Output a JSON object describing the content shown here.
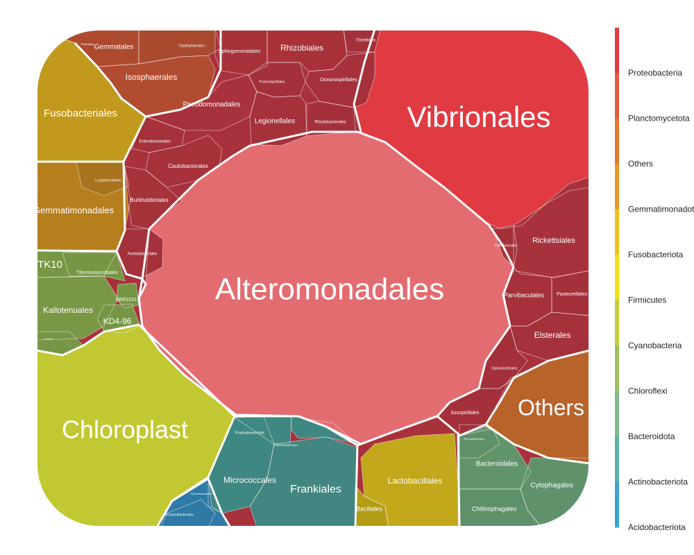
{
  "chart_data": {
    "type": "treemap",
    "layout": "voronoi",
    "legend_position": "right",
    "phyla": [
      {
        "name": "Proteobacteria",
        "color": "#e2393f"
      },
      {
        "name": "Planctomycetota",
        "color": "#e35b3c"
      },
      {
        "name": "Others",
        "color": "#e6772d"
      },
      {
        "name": "Gemmatimonadota",
        "color": "#e99623"
      },
      {
        "name": "Fusobacteriota",
        "color": "#ecc01c"
      },
      {
        "name": "Firmicutes",
        "color": "#f0e014"
      },
      {
        "name": "Cyanobacteria",
        "color": "#c2cc3c"
      },
      {
        "name": "Chloroflexi",
        "color": "#9ebf64"
      },
      {
        "name": "Bacteroidota",
        "color": "#7fba8c"
      },
      {
        "name": "Actinobacteriota",
        "color": "#5db2a8"
      },
      {
        "name": "Acidobacteriota",
        "color": "#3aa3d6"
      }
    ],
    "legend": [
      {
        "label": "Proteobacteria"
      },
      {
        "label": "Planctomycetota"
      },
      {
        "label": "Others"
      },
      {
        "label": "Gemmatimonadota"
      },
      {
        "label": "Fusobacteriota"
      },
      {
        "label": "Firmicutes"
      },
      {
        "label": "Cyanobacteria"
      },
      {
        "label": "Chloroflexi"
      },
      {
        "label": "Bacteroidota"
      },
      {
        "label": "Actinobacteriota"
      },
      {
        "label": "Acidobacteriota"
      }
    ],
    "orders": [
      {
        "name": "Alteromonadales",
        "phylum": "Proteobacteria",
        "color": "#e36c70"
      },
      {
        "name": "Vibrionales",
        "phylum": "Proteobacteria",
        "color": "#e03b42"
      },
      {
        "name": "Chloroplast",
        "phylum": "Cyanobacteria",
        "color": "#c2c832"
      },
      {
        "name": "Others",
        "phylum": "Others",
        "color": "#b8632a"
      },
      {
        "name": "Fusobacteriales",
        "phylum": "Fusobacteriota",
        "color": "#c19a1d"
      },
      {
        "name": "Gemmatimonadales",
        "phylum": "Gemmatimonadota",
        "color": "#b67f1e"
      },
      {
        "name": "Isosphaerales",
        "phylum": "Planctomycetota",
        "color": "#b24c30"
      },
      {
        "name": "Gemmatales",
        "phylum": "Planctomycetota",
        "color": "#ad4a2e"
      },
      {
        "name": "Lactobacillales",
        "phylum": "Firmicutes",
        "color": "#c2a81a"
      },
      {
        "name": "Bacillales",
        "phylum": "Firmicutes",
        "color": "#b39d14"
      },
      {
        "name": "Frankiales",
        "phylum": "Actinobacteriota",
        "color": "#418681"
      },
      {
        "name": "Micrococcales",
        "phylum": "Actinobacteriota",
        "color": "#3f8782"
      },
      {
        "name": "Bacteroidales",
        "phylum": "Bacteroidota",
        "color": "#61946a"
      },
      {
        "name": "Cytophagales",
        "phylum": "Bacteroidota",
        "color": "#5f926a"
      },
      {
        "name": "Chitinophagales",
        "phylum": "Bacteroidota",
        "color": "#5e9069"
      },
      {
        "name": "Kallotenuales",
        "phylum": "Chloroflexi",
        "color": "#789845"
      },
      {
        "name": "TK10",
        "phylum": "Chloroflexi",
        "color": "#779745"
      },
      {
        "name": "KD4-96",
        "phylum": "Chloroflexi",
        "color": "#769645"
      },
      {
        "name": "Rhizobiales",
        "phylum": "Proteobacteria",
        "color": "#a9323a"
      },
      {
        "name": "Pseudomonadales",
        "phylum": "Proteobacteria",
        "color": "#a8323b"
      },
      {
        "name": "Legionellales",
        "phylum": "Proteobacteria",
        "color": "#a5313a"
      },
      {
        "name": "Rickettsiales",
        "phylum": "Proteobacteria",
        "color": "#a8323b"
      },
      {
        "name": "Elsterales",
        "phylum": "Proteobacteria",
        "color": "#a5313a"
      },
      {
        "name": "Parvibaculales",
        "phylum": "Proteobacteria",
        "color": "#a6313a"
      },
      {
        "name": "Burkholderiales",
        "phylum": "Proteobacteria",
        "color": "#a6323a"
      },
      {
        "name": "Caulobacterales",
        "phylum": "Proteobacteria",
        "color": "#a7323a"
      },
      {
        "name": "Sphingomonadales",
        "phylum": "Proteobacteria",
        "color": "#a7323a"
      },
      {
        "name": "Oceanospirillales",
        "phylum": "Proteobacteria",
        "color": "#a6313a"
      },
      {
        "name": "Acetobacterales",
        "phylum": "Proteobacteria",
        "color": "#a5313a"
      },
      {
        "name": "Enterobacterales",
        "phylum": "Proteobacteria",
        "color": "#a5313a"
      },
      {
        "name": "Rhodobacterales",
        "phylum": "Proteobacteria",
        "color": "#a4313a"
      },
      {
        "name": "Tistrellales",
        "phylum": "Proteobacteria",
        "color": "#a4313a"
      },
      {
        "name": "Puniceispirillales",
        "phylum": "Proteobacteria",
        "color": "#a4313a"
      },
      {
        "name": "Pasteurellales",
        "phylum": "Proteobacteria",
        "color": "#a4313a"
      },
      {
        "name": "Cellvibrionales",
        "phylum": "Proteobacteria",
        "color": "#a4313a"
      },
      {
        "name": "Diplorickettsiales",
        "phylum": "Proteobacteria",
        "color": "#a3303a"
      },
      {
        "name": "Azospirillales",
        "phylum": "Proteobacteria",
        "color": "#a3303a"
      },
      {
        "name": "Thermomicrobiales",
        "phylum": "Chloroflexi",
        "color": "#769645"
      },
      {
        "name": "Longimicrobiales",
        "phylum": "Gemmatimonadota",
        "color": "#a8731c"
      },
      {
        "name": "SBR1031",
        "phylum": "Chloroflexi",
        "color": "#759545"
      },
      {
        "name": "Tepidisphaerales",
        "phylum": "Planctomycetota",
        "color": "#a94a2e"
      },
      {
        "name": "Pirellulales",
        "phylum": "Planctomycetota",
        "color": "#a94a2e"
      },
      {
        "name": "C0119",
        "phylum": "Chloroflexi",
        "color": "#769645"
      },
      {
        "name": "Propionibacteriales",
        "phylum": "Actinobacteriota",
        "color": "#3f8782"
      },
      {
        "name": "Pseudonocardiales",
        "phylum": "Actinobacteriota",
        "color": "#3f8782"
      },
      {
        "name": "Rhodothermales",
        "phylum": "Bacteroidota",
        "color": "#5e9069"
      },
      {
        "name": "Pyrinomonadales",
        "phylum": "Acidobacteriota",
        "color": "#2f7aa6"
      },
      {
        "name": "Vicinamibacterales",
        "phylum": "Acidobacteriota",
        "color": "#2e79a5"
      }
    ]
  },
  "chart_labels": {
    "Alteromonadales": "Alteromonadales",
    "Vibrionales": "Vibrionales",
    "Chloroplast": "Chloroplast",
    "Others": "Others",
    "Fusobacteriales": "Fusobacteriales",
    "Gemmatimonadales": "Gemmatimonadales",
    "Isosphaerales": "Isosphaerales",
    "Gemmatales": "Gemmatales",
    "Lactobacillales": "Lactobacillales",
    "Bacillales": "Bacillales",
    "Frankiales": "Frankiales",
    "Micrococcales": "Micrococcales",
    "Bacteroidales": "Bacteroidales",
    "Cytophagales": "Cytophagales",
    "Chitinophagales": "Chitinophagales",
    "Kallotenuales": "Kallotenuales",
    "TK10": "TK10",
    "KD4-96": "KD4-96",
    "Rhizobiales": "Rhizobiales",
    "Pseudomonadales": "Pseudomonadales",
    "Legionellales": "Legionellales",
    "Rickettsiales": "Rickettsiales",
    "Elsterales": "Elsterales",
    "Parvibaculales": "Parvibaculales",
    "Burkholderiales": "Burkholderiales",
    "Caulobacterales": "Caulobacterales",
    "Sphingomonadales": "Sphingomonadales",
    "Oceanospirillales": "Oceanospirillales",
    "Acetobacterales": "Acetobacterales",
    "Enterobacterales": "Enterobacterales",
    "Rhodobacterales": "Rhodobacterales",
    "Tistrellales": "Tistrellales",
    "Puniceispirillales": "Puniceispirillales",
    "Pasteurellales": "Pasteurellales",
    "Cellvibrionales": "Cellvibrionales",
    "Diplorickettsiales": "Diplorickettsiales",
    "Azospirillales": "Azospirillales",
    "Thermomicrobiales": "Thermomicrobiales",
    "Longimicrobiales": "Longimicrobiales",
    "SBR1031": "SBR1031",
    "Tepidisphaerales": "Tepidisphaerales",
    "Pirellulales": "Pirellulales",
    "C0119": "C0119",
    "Propionibacteriales": "Propionibacteriales",
    "Pseudonocardiales": "Pseudonocardiales",
    "Rhodothermales": "Rhodothermales",
    "Pyrinomonadales": "Pyrinomonadales",
    "Vicinamibacterales": "Vicinamibacterales"
  }
}
